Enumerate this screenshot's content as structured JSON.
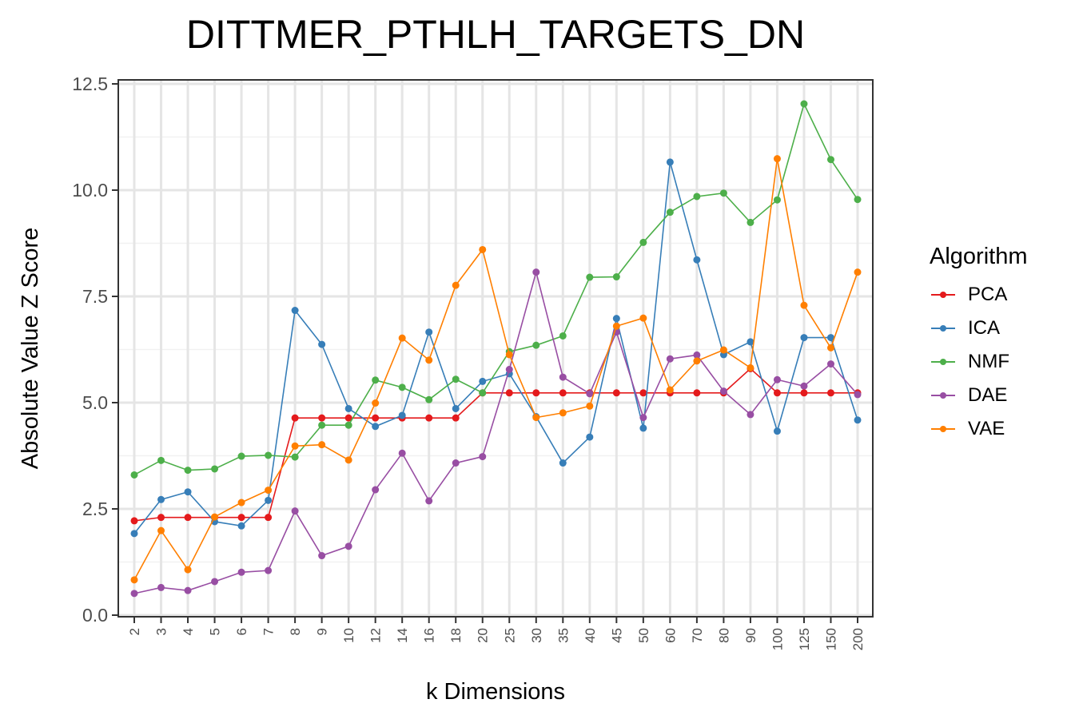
{
  "chart_data": {
    "type": "line",
    "title": "DITTMER_PTHLH_TARGETS_DN",
    "xlabel": "k Dimensions",
    "ylabel": "Absolute Value Z Score",
    "categories": [
      "2",
      "3",
      "4",
      "5",
      "6",
      "7",
      "8",
      "9",
      "10",
      "12",
      "14",
      "16",
      "18",
      "20",
      "25",
      "30",
      "35",
      "40",
      "45",
      "50",
      "60",
      "70",
      "80",
      "90",
      "100",
      "125",
      "150",
      "200"
    ],
    "ylim": [
      0,
      12.6
    ],
    "yticks": [
      "0.0",
      "2.5",
      "5.0",
      "7.5",
      "10.0",
      "12.5"
    ],
    "grid": true,
    "legend_title": "Algorithm",
    "legend_position": "right",
    "series": [
      {
        "name": "PCA",
        "color": "#e41a1c",
        "values": [
          2.22,
          2.3,
          2.3,
          2.3,
          2.3,
          2.3,
          4.64,
          4.64,
          4.64,
          4.64,
          4.64,
          4.64,
          4.64,
          5.23,
          5.23,
          5.23,
          5.23,
          5.23,
          5.23,
          5.23,
          5.23,
          5.23,
          5.23,
          5.8,
          5.23,
          5.23,
          5.23,
          5.23
        ]
      },
      {
        "name": "ICA",
        "color": "#377eb8",
        "values": [
          1.92,
          2.72,
          2.9,
          2.2,
          2.1,
          2.7,
          7.17,
          6.37,
          4.86,
          4.44,
          4.7,
          6.66,
          4.86,
          5.5,
          5.68,
          4.67,
          3.58,
          4.19,
          6.98,
          4.4,
          10.66,
          8.36,
          6.13,
          6.43,
          4.33,
          6.53,
          6.53,
          4.59
        ]
      },
      {
        "name": "NMF",
        "color": "#4daf4a",
        "values": [
          3.3,
          3.64,
          3.41,
          3.44,
          3.74,
          3.76,
          3.72,
          4.47,
          4.47,
          5.53,
          5.36,
          5.07,
          5.55,
          5.23,
          6.2,
          6.35,
          6.57,
          7.95,
          7.96,
          8.77,
          9.48,
          9.85,
          9.93,
          9.24,
          9.77,
          12.03,
          10.72,
          9.78
        ]
      },
      {
        "name": "DAE",
        "color": "#984ea3",
        "values": [
          0.51,
          0.65,
          0.58,
          0.79,
          1.01,
          1.05,
          2.45,
          1.4,
          1.62,
          2.95,
          3.81,
          2.69,
          3.58,
          3.73,
          5.78,
          8.07,
          5.6,
          5.21,
          6.66,
          4.65,
          6.03,
          6.12,
          5.27,
          4.72,
          5.54,
          5.39,
          5.91,
          5.19
        ]
      },
      {
        "name": "VAE",
        "color": "#ff7f00",
        "values": [
          0.83,
          1.99,
          1.07,
          2.31,
          2.65,
          2.94,
          3.98,
          4.01,
          3.65,
          4.99,
          6.52,
          6.0,
          7.76,
          8.6,
          6.13,
          4.65,
          4.76,
          4.92,
          6.8,
          6.99,
          5.3,
          5.98,
          6.24,
          5.82,
          10.74,
          7.29,
          6.29,
          8.07
        ]
      }
    ]
  }
}
